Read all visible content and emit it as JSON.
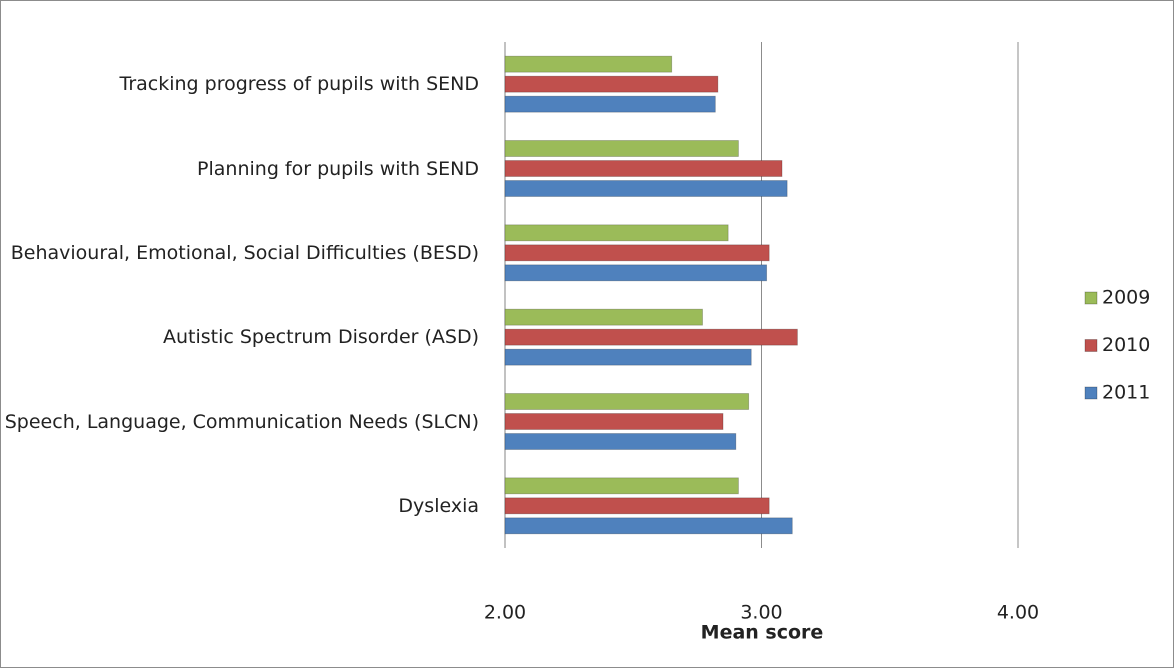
{
  "chart_data": {
    "type": "bar",
    "orientation": "horizontal",
    "xlabel": "Mean score",
    "categories": [
      "Tracking progress of pupils with SEND",
      "Planning for pupils with SEND",
      "Behavioural, Emotional, Social Difficulties (BESD)",
      "Autistic Spectrum Disorder (ASD)",
      "Speech, Language, Communication Needs (SLCN)",
      "Dyslexia"
    ],
    "series": [
      {
        "name": "2009",
        "color": "#9bbb59",
        "values": [
          2.65,
          2.91,
          2.87,
          2.77,
          2.95,
          2.91
        ]
      },
      {
        "name": "2010",
        "color": "#c0504d",
        "values": [
          2.83,
          3.08,
          3.03,
          3.14,
          2.85,
          3.03
        ]
      },
      {
        "name": "2011",
        "color": "#4f81bd",
        "values": [
          2.82,
          3.1,
          3.02,
          2.96,
          2.9,
          3.12
        ]
      }
    ],
    "xlim": [
      2,
      4
    ],
    "xticks": [
      {
        "value": 2,
        "label": "2.00"
      },
      {
        "value": 3,
        "label": "3.00"
      },
      {
        "value": 4,
        "label": "4.00"
      }
    ],
    "grid": true,
    "legend": "right"
  }
}
